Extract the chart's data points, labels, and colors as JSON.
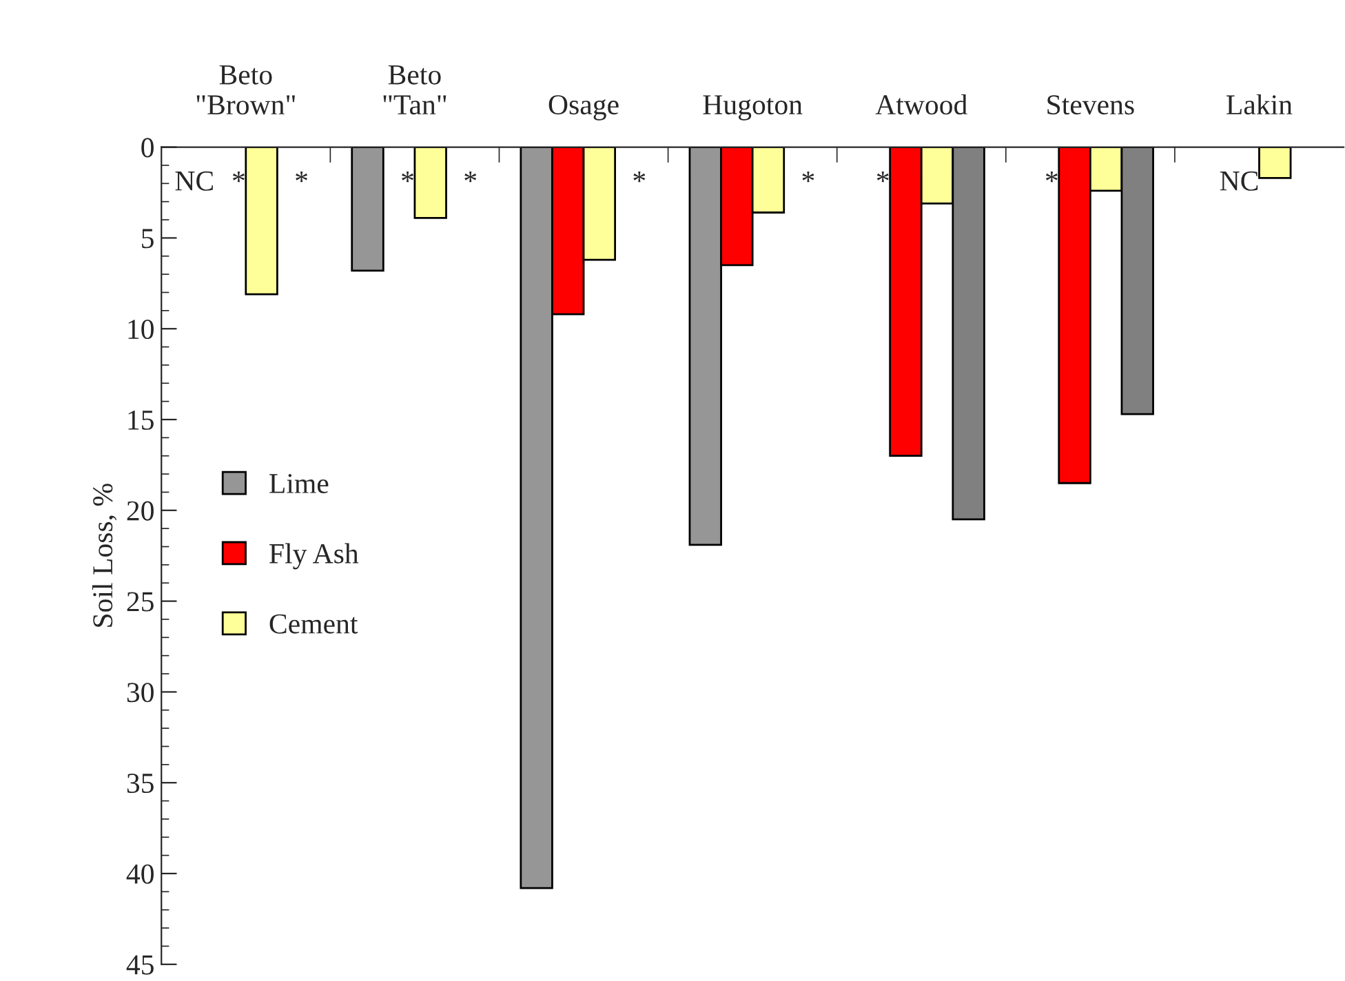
{
  "chart_data": {
    "type": "bar",
    "ylabel": "Soil Loss, %",
    "categories": [
      "Beto\n\"Brown\"",
      "Beto\n\"Tan\"",
      "Osage",
      "Hugoton",
      "Atwood",
      "Stevens",
      "Lakin"
    ],
    "series": [
      {
        "name": "Lime",
        "color": "#969696",
        "values": [
          null,
          6.8,
          40.8,
          21.9,
          null,
          null,
          null
        ],
        "value_labels": [
          "NC",
          null,
          null,
          null,
          "*",
          "*",
          null
        ]
      },
      {
        "name": "Fly Ash",
        "color": "#ff0000",
        "values": [
          null,
          null,
          9.2,
          6.5,
          17.0,
          18.5,
          null
        ],
        "value_labels": [
          "*",
          "*",
          null,
          null,
          null,
          null,
          "NC"
        ]
      },
      {
        "name": "Cement",
        "color": "#ffff99",
        "values": [
          8.1,
          3.9,
          6.2,
          3.6,
          3.1,
          2.4,
          1.7
        ]
      },
      {
        "color": "#808080",
        "values": [
          null,
          null,
          null,
          null,
          20.5,
          14.7,
          null
        ],
        "value_labels": [
          "*",
          "*",
          "*",
          "*",
          null,
          null,
          null
        ]
      }
    ],
    "ylim": [
      45,
      0
    ],
    "yticks": [
      0,
      5,
      10,
      15,
      20,
      25,
      30,
      35,
      40,
      45
    ],
    "grid": false,
    "legend": "left"
  }
}
